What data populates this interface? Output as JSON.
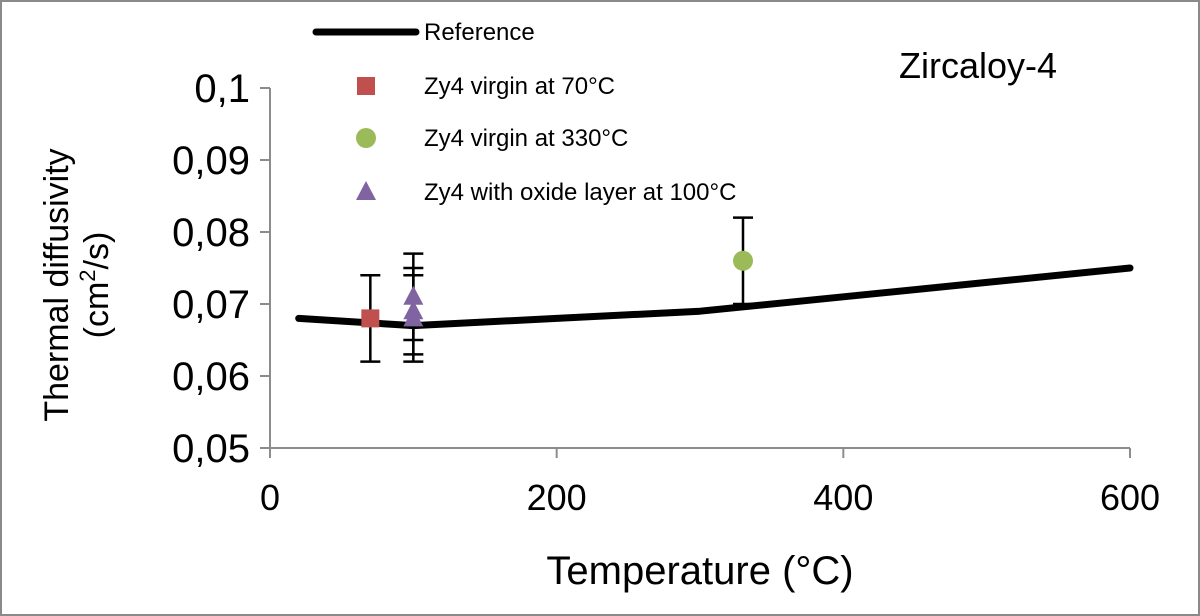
{
  "chart_data": {
    "type": "scatter",
    "title": "Zircaloy-4",
    "xlabel": "Temperature (°C)",
    "ylabel_line1": "Thermal diffusivity",
    "ylabel_line2_prefix": "(cm",
    "ylabel_line2_sup": "2",
    "ylabel_line2_suffix": "/s)",
    "xlim": [
      0,
      600
    ],
    "ylim": [
      0.05,
      0.1
    ],
    "x_ticks": [
      0,
      200,
      400,
      600
    ],
    "x_tick_labels": [
      "0",
      "200",
      "400",
      "600"
    ],
    "y_ticks": [
      0.05,
      0.06,
      0.07,
      0.08,
      0.09,
      0.1
    ],
    "y_tick_labels": [
      "0,05",
      "0,06",
      "0,07",
      "0,08",
      "0,09",
      "0,1"
    ],
    "grid": false,
    "legend_position": "top",
    "series": [
      {
        "name": "Reference",
        "kind": "line",
        "color": "#000000",
        "x": [
          20,
          100,
          200,
          300,
          400,
          500,
          600
        ],
        "y": [
          0.068,
          0.067,
          0.068,
          0.069,
          0.071,
          0.073,
          0.075
        ]
      },
      {
        "name": "Zy4 virgin at 70°C",
        "kind": "marker",
        "marker": "square",
        "color": "#c0504d",
        "points": [
          {
            "x": 70,
            "y": 0.068,
            "err_low": 0.062,
            "err_high": 0.074
          }
        ]
      },
      {
        "name": "Zy4 virgin at 330°C",
        "kind": "marker",
        "marker": "circle",
        "color": "#9bbb59",
        "points": [
          {
            "x": 330,
            "y": 0.076,
            "err_low": 0.07,
            "err_high": 0.082
          }
        ]
      },
      {
        "name": "Zy4 with oxide layer at 100°C",
        "kind": "marker",
        "marker": "triangle",
        "color": "#8064a2",
        "points": [
          {
            "x": 100,
            "y": 0.071,
            "err_low": 0.065,
            "err_high": 0.077
          },
          {
            "x": 100,
            "y": 0.069,
            "err_low": 0.063,
            "err_high": 0.075
          },
          {
            "x": 100,
            "y": 0.068,
            "err_low": 0.062,
            "err_high": 0.074
          }
        ]
      }
    ]
  }
}
